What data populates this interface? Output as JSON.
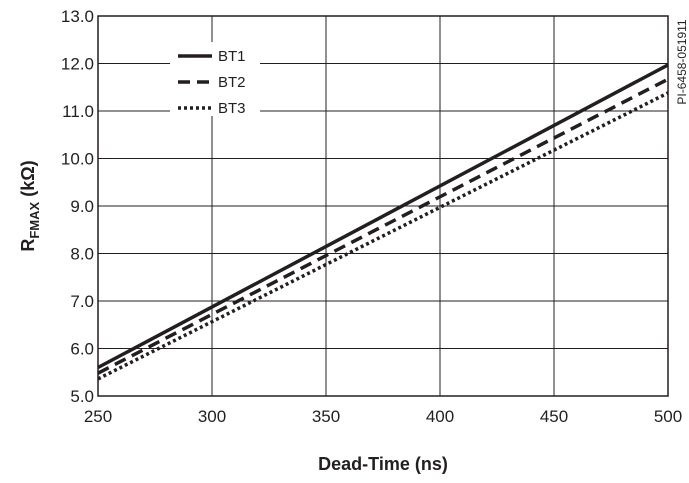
{
  "chart_data": {
    "type": "line",
    "title": "",
    "xlabel": "Dead-Time (ns)",
    "ylabel_main": "R",
    "ylabel_sub": "FMAX",
    "ylabel_unit": " (kΩ)",
    "xlim": [
      250,
      500
    ],
    "ylim": [
      5.0,
      13.0
    ],
    "x_ticks": [
      "250",
      "300",
      "350",
      "400",
      "450",
      "500"
    ],
    "y_ticks": [
      "5.0",
      "6.0",
      "7.0",
      "8.0",
      "9.0",
      "10.0",
      "11.0",
      "12.0",
      "13.0"
    ],
    "grid": true,
    "legend_position": "top-left",
    "side_note": "PI-6458-051911",
    "series": [
      {
        "name": "BT1",
        "style": "solid",
        "x": [
          250,
          500
        ],
        "y": [
          5.6,
          11.97
        ]
      },
      {
        "name": "BT2",
        "style": "dashed",
        "x": [
          250,
          500
        ],
        "y": [
          5.48,
          11.67
        ]
      },
      {
        "name": "BT3",
        "style": "dotted",
        "x": [
          250,
          500
        ],
        "y": [
          5.36,
          11.38
        ]
      }
    ],
    "line_color": "#231f20",
    "grid_color": "#231f20"
  }
}
